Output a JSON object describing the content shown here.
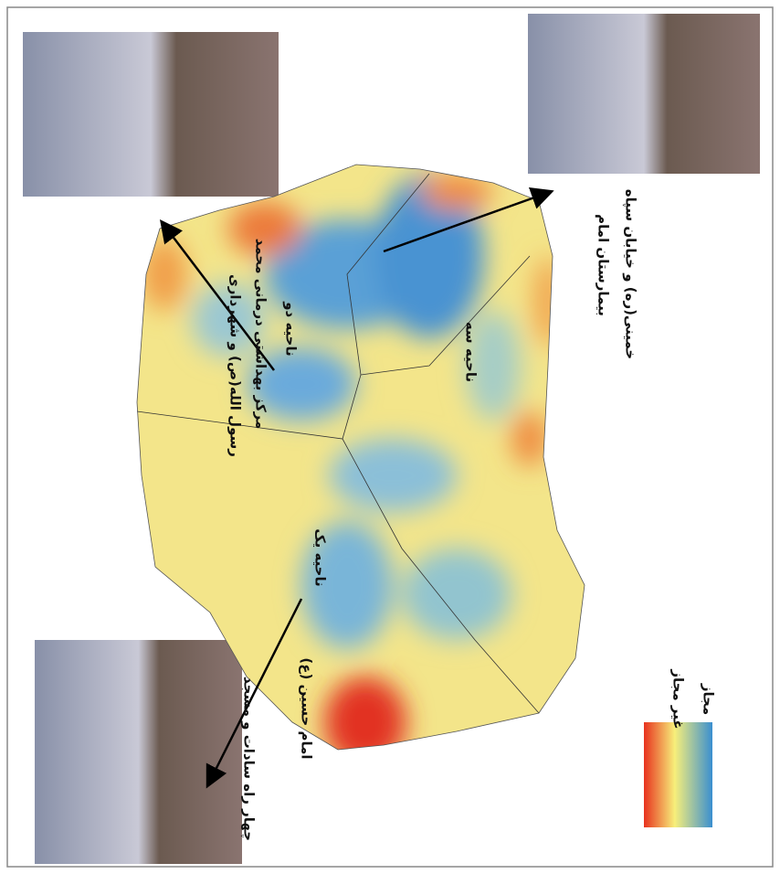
{
  "map": {
    "photo_labels": {
      "health_center": [
        "مرکز بهداشتی درمانی محمد",
        "رسول الله(ص) و شهرداری"
      ],
      "hospital": [
        "بیمارستان امام",
        "خمینی(ره) و خیابان سپاه"
      ],
      "crossroad": [
        "چهار راه سادات و مسجد",
        "امام حسین (ع)"
      ]
    },
    "districts": [
      "ناحیه دو",
      "ناحیه سه",
      "ناحیه یک"
    ],
    "legend": {
      "high": "غیر مجاز",
      "low": "مجاز"
    }
  }
}
